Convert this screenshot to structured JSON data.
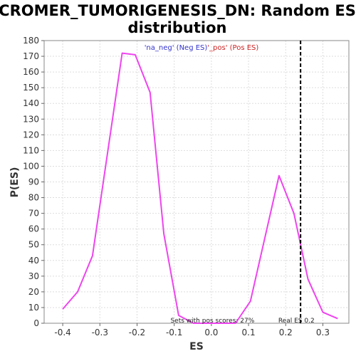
{
  "chart_data": {
    "type": "line",
    "title_line1": "CROMER_TUMORIGENESIS_DN: Random ES",
    "title_line2": "distribution",
    "xlabel": "ES",
    "ylabel": "P(ES)",
    "xlim": [
      -0.45,
      0.37
    ],
    "ylim": [
      0,
      180
    ],
    "x_ticks": [
      -0.4,
      -0.3,
      -0.2,
      -0.1,
      0.0,
      0.1,
      0.2,
      0.3
    ],
    "x_tick_labels": [
      "-0.4",
      "-0.3",
      "-0.2",
      "-0.1",
      "0.0",
      "0.1",
      "0.2",
      "0.3"
    ],
    "y_ticks": [
      0,
      10,
      20,
      30,
      40,
      50,
      60,
      70,
      80,
      90,
      100,
      110,
      120,
      130,
      140,
      150,
      160,
      170,
      180
    ],
    "y_tick_labels": [
      "0",
      "10",
      "20",
      "30",
      "40",
      "50",
      "60",
      "70",
      "80",
      "90",
      "100",
      "110",
      "120",
      "130",
      "140",
      "150",
      "160",
      "170",
      "180"
    ],
    "grid": true,
    "legend": {
      "neg_text": "'na_neg' (Neg ES)",
      "sep_text": "'",
      "pos_text": "_pos' (Pos ES)",
      "neg_color": "#3333cc",
      "pos_color": "#cc2222",
      "placement": "top-center"
    },
    "series": [
      {
        "color": "#ee44ee",
        "x": [
          -0.4,
          -0.36,
          -0.32,
          -0.24,
          -0.205,
          -0.165,
          -0.128,
          -0.088,
          -0.048,
          0.065,
          0.105,
          0.182,
          0.222,
          0.26,
          0.3,
          0.34
        ],
        "y": [
          9,
          20,
          43,
          172,
          171,
          147,
          57,
          5,
          0,
          0,
          14,
          94,
          70,
          28,
          7,
          3
        ]
      }
    ],
    "annotations": {
      "pos_scores_text": "Sets with pos scores: 27%",
      "pos_scores_x": -0.11,
      "real_es_text": "Real ES 0.2",
      "real_es_x": 0.24,
      "real_es_label_x": 0.18
    },
    "colors": {
      "line": "#ee44ee",
      "real_es_marker": "#000000",
      "grid": "#dddddd",
      "frame": "#888888"
    }
  }
}
